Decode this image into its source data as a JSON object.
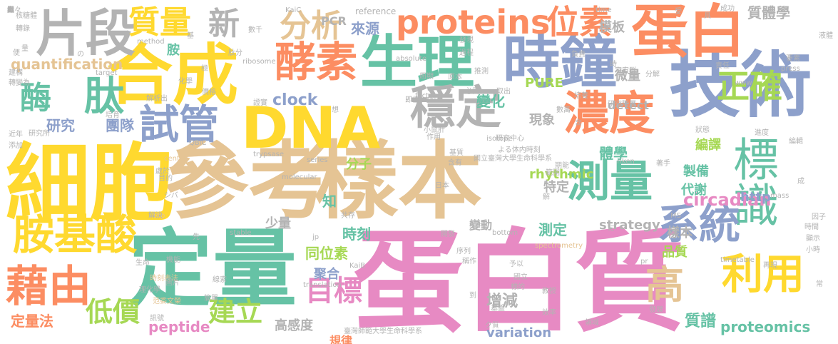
{
  "colors": {
    "pink": "#e78ac3",
    "tan": "#e5c494",
    "green": "#66c2a5",
    "orange": "#fc8d62",
    "blue": "#8da0cb",
    "yellow": "#ffd92f",
    "lime": "#a6d854",
    "gray": "#b3b3b3"
  },
  "words": [
    {
      "text": "蛋白質",
      "color": "pink"
    },
    {
      "text": "參考",
      "color": "tan"
    },
    {
      "text": "樣本",
      "color": "tan"
    },
    {
      "text": "細胞",
      "color": "yellow"
    },
    {
      "text": "定量",
      "color": "green"
    },
    {
      "text": "技術",
      "color": "blue"
    },
    {
      "text": "合成",
      "color": "yellow"
    },
    {
      "text": "生理",
      "color": "green"
    },
    {
      "text": "時鐘",
      "color": "blue"
    },
    {
      "text": "蛋白",
      "color": "orange"
    },
    {
      "text": "DNA",
      "color": "yellow"
    },
    {
      "text": "穩定",
      "color": "gray"
    },
    {
      "text": "片段",
      "color": "gray"
    },
    {
      "text": "酵素",
      "color": "orange"
    },
    {
      "text": "測量",
      "color": "green"
    },
    {
      "text": "標識",
      "color": "green"
    },
    {
      "text": "濃度",
      "color": "orange"
    },
    {
      "text": "系統",
      "color": "blue"
    },
    {
      "text": "胺基酸",
      "color": "yellow"
    },
    {
      "text": "藉由",
      "color": "orange"
    },
    {
      "text": "利用",
      "color": "yellow"
    },
    {
      "text": "試管",
      "color": "blue"
    },
    {
      "text": "肽",
      "color": "green"
    },
    {
      "text": "酶",
      "color": "green"
    },
    {
      "text": "高",
      "color": "tan"
    },
    {
      "text": "proteins",
      "color": "orange"
    },
    {
      "text": "位素",
      "color": "orange"
    },
    {
      "text": "質量",
      "color": "yellow"
    },
    {
      "text": "新",
      "color": "gray"
    },
    {
      "text": "分析",
      "color": "tan"
    },
    {
      "text": "正確",
      "color": "lime"
    },
    {
      "text": "目標",
      "color": "pink"
    },
    {
      "text": "建立",
      "color": "lime"
    },
    {
      "text": "低價",
      "color": "lime"
    },
    {
      "text": "circadian",
      "color": "pink"
    },
    {
      "text": "quantification",
      "color": "tan"
    },
    {
      "text": "clock",
      "color": "blue"
    },
    {
      "text": "研究",
      "color": "blue"
    },
    {
      "text": "團隊",
      "color": "blue"
    },
    {
      "text": "來源",
      "color": "blue"
    },
    {
      "text": "質體學",
      "color": "gray"
    },
    {
      "text": "模板",
      "color": "gray"
    },
    {
      "text": "微量",
      "color": "gray"
    },
    {
      "text": "變化",
      "color": "green"
    },
    {
      "text": "現象",
      "color": "gray"
    },
    {
      "text": "編譯",
      "color": "lime"
    },
    {
      "text": "製備",
      "color": "green"
    },
    {
      "text": "代謝",
      "color": "green"
    },
    {
      "text": "體學",
      "color": "green"
    },
    {
      "text": "rhythmic",
      "color": "lime"
    },
    {
      "text": "分子",
      "color": "lime"
    },
    {
      "text": "特定",
      "color": "gray"
    },
    {
      "text": "http",
      "color": "blue"
    },
    {
      "text": "少量",
      "color": "gray"
    },
    {
      "text": "時刻",
      "color": "green"
    },
    {
      "text": "同位素",
      "color": "lime"
    },
    {
      "text": "聚合",
      "color": "blue"
    },
    {
      "text": "樣本",
      "color": "gray"
    },
    {
      "text": "品質",
      "color": "lime"
    },
    {
      "text": "測定",
      "color": "green"
    },
    {
      "text": "strategy",
      "color": "gray"
    },
    {
      "text": "增減",
      "color": "gray"
    },
    {
      "text": "定量法",
      "color": "orange"
    },
    {
      "text": "peptide",
      "color": "pink"
    },
    {
      "text": "高感度",
      "color": "gray"
    },
    {
      "text": "規律",
      "color": "orange"
    },
    {
      "text": "variation",
      "color": "blue"
    },
    {
      "text": "質譜",
      "color": "green"
    },
    {
      "text": "proteomics",
      "color": "green"
    },
    {
      "text": "PCR",
      "color": "gray"
    },
    {
      "text": "PURE",
      "color": "lime"
    },
    {
      "text": "detect",
      "color": "gray"
    },
    {
      "text": "胺",
      "color": "green"
    },
    {
      "text": "知",
      "color": "green"
    },
    {
      "text": "變動",
      "color": "gray"
    },
    {
      "text": "reference",
      "color": "gray"
    },
    {
      "text": "ribosome",
      "color": "gray"
    },
    {
      "text": "KaiC",
      "color": "gray"
    },
    {
      "text": "time",
      "color": "gray"
    },
    {
      "text": "成功",
      "color": "gray"
    },
    {
      "text": "absolute",
      "color": "gray"
    },
    {
      "text": "method",
      "color": "gray"
    },
    {
      "text": "target",
      "color": "gray"
    },
    {
      "text": "factor",
      "color": "gray"
    },
    {
      "text": "isotope",
      "color": "gray"
    },
    {
      "text": "center",
      "color": "tan"
    },
    {
      "text": "series",
      "color": "gray"
    },
    {
      "text": "trypsase",
      "color": "gray"
    },
    {
      "text": "molecular",
      "color": "gray"
    },
    {
      "text": "riken",
      "color": "gray"
    },
    {
      "text": "mass",
      "color": "gray"
    },
    {
      "text": "top",
      "color": "tan"
    },
    {
      "text": "MS",
      "color": "gray"
    },
    {
      "text": "stable",
      "color": "gray"
    },
    {
      "text": "bottom",
      "color": "gray"
    },
    {
      "text": "jp",
      "color": "gray"
    },
    {
      "text": "spectrometry",
      "color": "tan"
    },
    {
      "text": "KaiB",
      "color": "gray"
    },
    {
      "text": "translation",
      "color": "gray"
    },
    {
      "text": "timetable",
      "color": "gray"
    },
    {
      "text": "www",
      "color": "gray"
    },
    {
      "text": "press",
      "color": "gray"
    },
    {
      "text": "KaiA",
      "color": "gray"
    },
    {
      "text": "QBiC",
      "color": "gray"
    },
    {
      "text": "pr",
      "color": "gray"
    },
    {
      "text": "臺灣師範大學生命科學系",
      "color": "gray"
    },
    {
      "text": "國立臺灣大學生命科學系",
      "color": "gray"
    },
    {
      "text": "研究中心",
      "color": "gray"
    },
    {
      "text": "核糖體",
      "color": "gray"
    },
    {
      "text": "轉錄",
      "color": "gray"
    },
    {
      "text": "培育",
      "color": "gray"
    },
    {
      "text": "研究所",
      "color": "gray"
    },
    {
      "text": "近年",
      "color": "gray"
    },
    {
      "text": "添加",
      "color": "gray"
    },
    {
      "text": "肽分",
      "color": "gray"
    },
    {
      "text": "數千",
      "color": "gray"
    },
    {
      "text": "過程",
      "color": "gray"
    },
    {
      "text": "發現",
      "color": "gray"
    },
    {
      "text": "推測",
      "color": "gray"
    },
    {
      "text": "周期",
      "color": "gray"
    },
    {
      "text": "原本",
      "color": "gray"
    },
    {
      "text": "解析出",
      "color": "gray"
    },
    {
      "text": "價格",
      "color": "gray"
    },
    {
      "text": "必需",
      "color": "gray"
    },
    {
      "text": "取出",
      "color": "gray"
    },
    {
      "text": "培養",
      "color": "gray"
    },
    {
      "text": "研究階層",
      "color": "gray"
    },
    {
      "text": "狀態",
      "color": "gray"
    },
    {
      "text": "責任",
      "color": "gray"
    },
    {
      "text": "要素",
      "color": "gray"
    },
    {
      "text": "液體",
      "color": "gray"
    },
    {
      "text": "顯示",
      "color": "gray"
    },
    {
      "text": "小時",
      "color": "gray"
    },
    {
      "text": "因子",
      "color": "gray"
    },
    {
      "text": "時間",
      "color": "gray"
    },
    {
      "text": "再現",
      "color": "gray"
    },
    {
      "text": "發展",
      "color": "gray"
    },
    {
      "text": "領域",
      "color": "gray"
    },
    {
      "text": "效率",
      "color": "gray"
    },
    {
      "text": "基盤",
      "color": "gray"
    },
    {
      "text": "教授",
      "color": "gray"
    },
    {
      "text": "國立",
      "color": "gray"
    },
    {
      "text": "標的",
      "color": "gray"
    },
    {
      "text": "稱作",
      "color": "gray"
    },
    {
      "text": "序列",
      "color": "gray"
    },
    {
      "text": "基質",
      "color": "gray"
    },
    {
      "text": "含有",
      "color": "gray"
    },
    {
      "text": "期能",
      "color": "gray"
    },
    {
      "text": "著手",
      "color": "gray"
    },
    {
      "text": "範圍",
      "color": "gray"
    },
    {
      "text": "日本",
      "color": "gray"
    },
    {
      "text": "開發",
      "color": "gray"
    },
    {
      "text": "共存",
      "color": "gray"
    },
    {
      "text": "小鼠肝",
      "color": "gray"
    },
    {
      "text": "機能",
      "color": "gray"
    },
    {
      "text": "訊號",
      "color": "gray"
    },
    {
      "text": "范委文榮",
      "color": "tan"
    },
    {
      "text": "時刻表法",
      "color": "tan"
    },
    {
      "text": "生命",
      "color": "gray"
    },
    {
      "text": "理化學",
      "color": "gray"
    },
    {
      "text": "圖片",
      "color": "gray"
    },
    {
      "text": "簡單",
      "color": "gray"
    },
    {
      "text": "解決",
      "color": "gray"
    },
    {
      "text": "目的",
      "color": "gray"
    },
    {
      "text": "線索",
      "color": "gray"
    },
    {
      "text": "作用",
      "color": "gray"
    },
    {
      "text": "化學",
      "color": "gray"
    },
    {
      "text": "建構",
      "color": "gray"
    },
    {
      "text": "轉變為",
      "color": "gray"
    },
    {
      "text": "數萬",
      "color": "gray"
    },
    {
      "text": "負責",
      "color": "gray"
    },
    {
      "text": "宇宙群",
      "color": "gray"
    },
    {
      "text": "分解",
      "color": "gray"
    },
    {
      "text": "よる体内時刻",
      "color": "gray"
    },
    {
      "text": "證實",
      "color": "gray"
    },
    {
      "text": "即佳",
      "color": "gray"
    },
    {
      "text": "予以",
      "color": "gray"
    },
    {
      "text": "處於",
      "color": "gray"
    },
    {
      "text": "シバ",
      "color": "gray"
    },
    {
      "text": "ク質",
      "color": "gray"
    },
    {
      "text": "進度",
      "color": "gray"
    },
    {
      "text": "編輯",
      "color": "gray"
    },
    {
      "text": "常",
      "color": "gray"
    },
    {
      "text": "解",
      "color": "gray"
    },
    {
      "text": "先",
      "color": "gray"
    },
    {
      "text": "想",
      "color": "gray"
    },
    {
      "text": "基",
      "color": "gray"
    },
    {
      "text": "便",
      "color": "gray"
    },
    {
      "text": "量",
      "color": "gray"
    },
    {
      "text": "極",
      "color": "gray"
    },
    {
      "text": "具",
      "color": "gray"
    },
    {
      "text": "含",
      "color": "gray"
    },
    {
      "text": "受",
      "color": "gray"
    },
    {
      "text": "時",
      "color": "gray"
    },
    {
      "text": "到",
      "color": "gray"
    },
    {
      "text": "の",
      "color": "gray"
    },
    {
      "text": "成",
      "color": "gray"
    },
    {
      "text": "に",
      "color": "gray"
    },
    {
      "text": "出",
      "color": "gray"
    },
    {
      "text": "係",
      "color": "gray"
    },
    {
      "text": "胞",
      "color": "gray"
    },
    {
      "text": "繼",
      "color": "gray"
    },
    {
      "text": "概々",
      "color": "gray"
    },
    {
      "text": "與",
      "color": "gray"
    }
  ]
}
